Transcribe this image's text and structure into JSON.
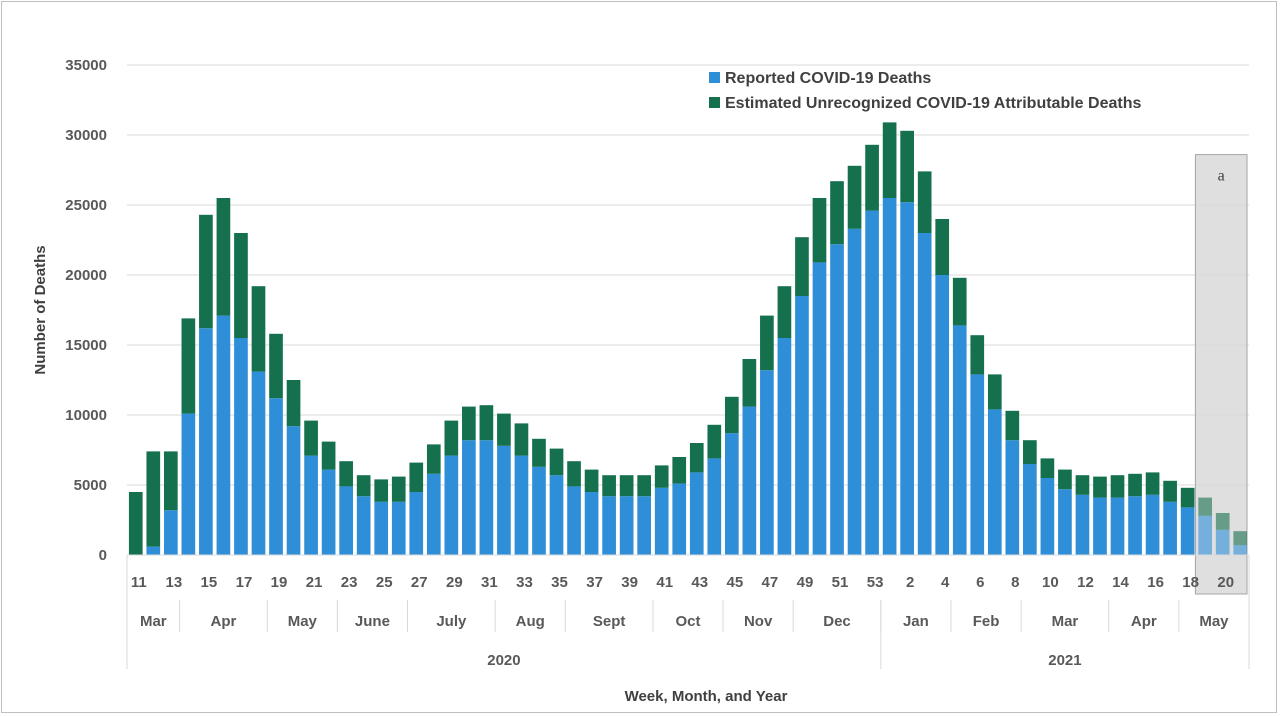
{
  "chart_data": {
    "type": "bar",
    "stacked": true,
    "title": "",
    "xlabel": "Week, Month, and Year",
    "ylabel": "Number of Deaths",
    "ylim": [
      0,
      35000
    ],
    "yticks": [
      0,
      5000,
      10000,
      15000,
      20000,
      25000,
      30000,
      35000
    ],
    "grid": true,
    "legend_position": "top-right",
    "series": [
      {
        "name": "Reported COVID-19 Deaths",
        "color": "#2e8fd8",
        "values": [
          0,
          600,
          3200,
          10100,
          16200,
          17100,
          15500,
          13100,
          11200,
          9200,
          7100,
          6100,
          4900,
          4200,
          3800,
          3800,
          4500,
          5800,
          7100,
          8200,
          8200,
          7800,
          7100,
          6300,
          5700,
          4900,
          4500,
          4200,
          4200,
          4200,
          4800,
          5100,
          5900,
          6900,
          8700,
          10600,
          13200,
          15500,
          18500,
          20900,
          22200,
          23300,
          24600,
          25500,
          25200,
          23000,
          20000,
          16400,
          12900,
          10400,
          8200,
          6500,
          5500,
          4700,
          4300,
          4100,
          4100,
          4200,
          4300,
          3800,
          3400,
          2800,
          1800,
          700
        ]
      },
      {
        "name": "Estimated Unrecognized COVID-19 Attributable Deaths",
        "color": "#15704e",
        "values": [
          4500,
          6800,
          4200,
          6800,
          8100,
          8400,
          7500,
          6100,
          4600,
          3300,
          2500,
          2000,
          1800,
          1500,
          1600,
          1800,
          2100,
          2100,
          2500,
          2400,
          2500,
          2300,
          2300,
          2000,
          1900,
          1800,
          1600,
          1500,
          1500,
          1500,
          1600,
          1900,
          2100,
          2400,
          2600,
          3400,
          3900,
          3700,
          4200,
          4600,
          4500,
          4500,
          4700,
          5400,
          5100,
          4400,
          4000,
          3400,
          2800,
          2500,
          2100,
          1700,
          1400,
          1400,
          1400,
          1500,
          1600,
          1600,
          1600,
          1500,
          1400,
          1300,
          1200,
          1000
        ]
      }
    ],
    "week_labels": [
      "11",
      "13",
      "15",
      "17",
      "19",
      "21",
      "23",
      "25",
      "27",
      "29",
      "31",
      "33",
      "35",
      "37",
      "39",
      "41",
      "43",
      "45",
      "47",
      "49",
      "51",
      "53",
      "2",
      "4",
      "6",
      "8",
      "10",
      "12",
      "14",
      "16",
      "18",
      "20"
    ],
    "months": [
      {
        "label": "Mar",
        "start": 0,
        "end": 3
      },
      {
        "label": "Apr",
        "start": 3,
        "end": 8
      },
      {
        "label": "May",
        "start": 8,
        "end": 12
      },
      {
        "label": "June",
        "start": 12,
        "end": 16
      },
      {
        "label": "July",
        "start": 16,
        "end": 21
      },
      {
        "label": "Aug",
        "start": 21,
        "end": 25
      },
      {
        "label": "Sept",
        "start": 25,
        "end": 30
      },
      {
        "label": "Oct",
        "start": 30,
        "end": 34
      },
      {
        "label": "Nov",
        "start": 34,
        "end": 38
      },
      {
        "label": "Dec",
        "start": 38,
        "end": 43
      },
      {
        "label": "Jan",
        "start": 43,
        "end": 47
      },
      {
        "label": "Feb",
        "start": 47,
        "end": 51
      },
      {
        "label": "Mar",
        "start": 51,
        "end": 56
      },
      {
        "label": "Apr",
        "start": 56,
        "end": 60
      },
      {
        "label": "May",
        "start": 60,
        "end": 64
      }
    ],
    "years": [
      {
        "label": "2020",
        "start": 0,
        "end": 43
      },
      {
        "label": "2021",
        "start": 43,
        "end": 64
      }
    ],
    "annotation": {
      "label": "a",
      "start": 61,
      "end": 64
    }
  }
}
